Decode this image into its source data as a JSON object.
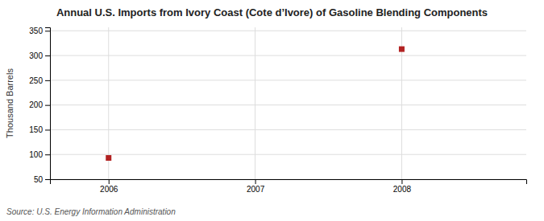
{
  "chart_data": {
    "type": "scatter",
    "title": "Annual U.S. Imports from Ivory Coast (Cote d’Ivore) of Gasoline Blending Components",
    "ylabel": "Thousand Barrels",
    "source": "Source: U.S. Energy Information Administration",
    "x": [
      2006,
      2008
    ],
    "values": [
      93,
      313
    ],
    "color": "#B22222",
    "marker": "square",
    "xlim": [
      2005.6,
      2008.85
    ],
    "ylim": [
      50,
      357
    ],
    "xticks": [
      2006,
      2007,
      2008
    ],
    "yticks": [
      50,
      100,
      150,
      200,
      250,
      300,
      350
    ],
    "grid": true
  }
}
